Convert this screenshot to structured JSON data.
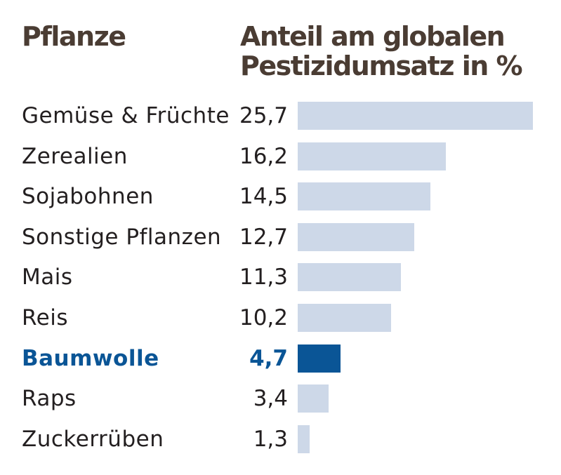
{
  "header": {
    "crop_column": "Pflanze",
    "share_column_line1": "Anteil am globalen",
    "share_column_line2": "Pestizidumsatz in %"
  },
  "colors": {
    "bar_default": "#cdd8e8",
    "bar_highlight": "#0a5596",
    "text": "#231f20",
    "header_text": "#4a3c33"
  },
  "chart_data": {
    "type": "bar",
    "orientation": "horizontal",
    "title": "",
    "xlabel": "Anteil am globalen Pestizidumsatz in %",
    "ylabel": "Pflanze",
    "xlim": [
      0,
      25.7
    ],
    "grid": false,
    "categories": [
      "Gemüse & Früchte",
      "Zerealien",
      "Sojabohnen",
      "Sonstige Pflanzen",
      "Mais",
      "Reis",
      "Baumwolle",
      "Raps",
      "Zuckerrüben"
    ],
    "values": [
      25.7,
      16.2,
      14.5,
      12.7,
      11.3,
      10.2,
      4.7,
      3.4,
      1.3
    ],
    "value_labels": [
      "25,7",
      "16,2",
      "14,5",
      "12,7",
      "11,3",
      "10,2",
      "4,7",
      "3,4",
      "1,3"
    ],
    "highlighted": [
      "Baumwolle"
    ]
  }
}
